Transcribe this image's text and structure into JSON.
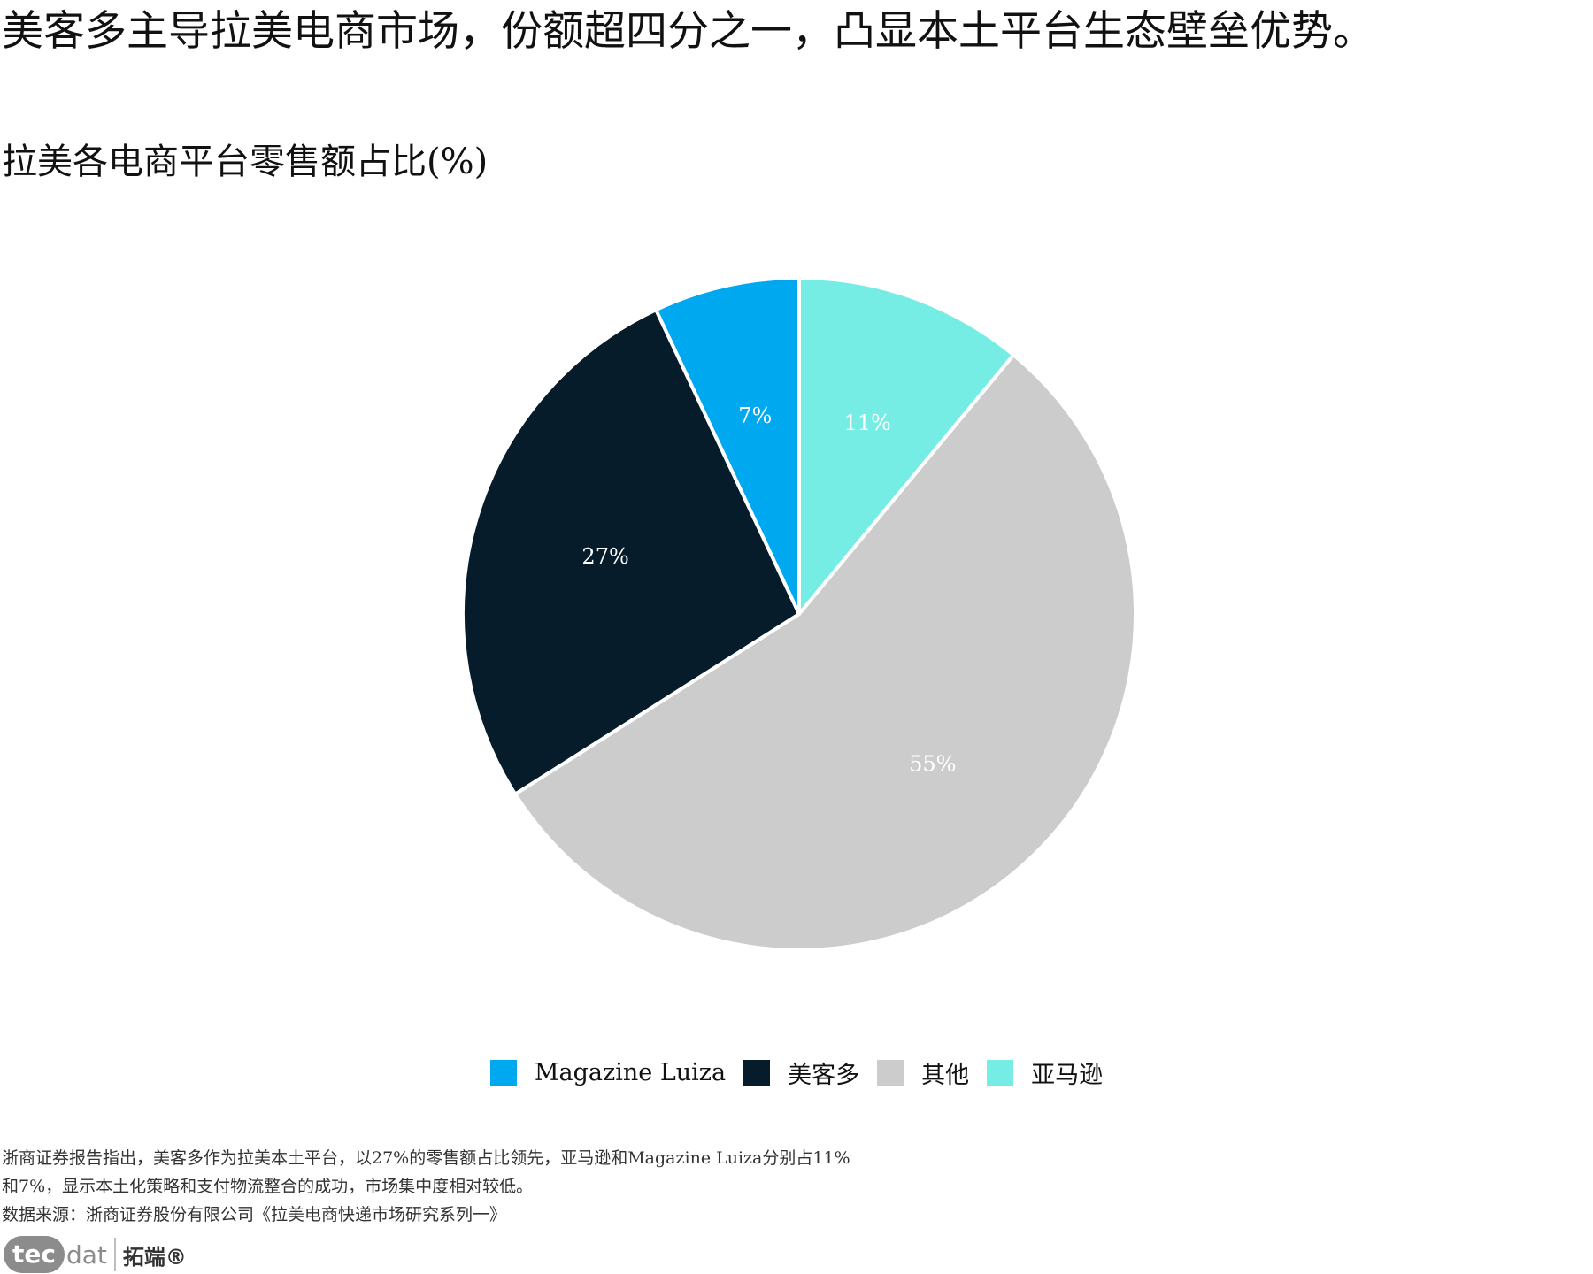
{
  "headline": "美客多主导拉美电商市场，份额超四分之一，凸显本土平台生态壁垒优势。",
  "chart_data": {
    "type": "pie",
    "title": "拉美各电商平台零售额占比(%)",
    "slices": [
      {
        "label": "Magazine Luiza",
        "value": 7,
        "display": "7%",
        "color": "#00a8f0"
      },
      {
        "label": "美客多",
        "value": 27,
        "display": "27%",
        "color": "#061c2b"
      },
      {
        "label": "其他",
        "value": 55,
        "display": "55%",
        "color": "#cccccc"
      },
      {
        "label": "亚马逊",
        "value": 11,
        "display": "11%",
        "color": "#76ede4"
      }
    ],
    "legend_position": "bottom"
  },
  "note": {
    "lines": [
      "浙商证券报告指出，美客多作为拉美本土平台，以27%的零售额占比领先，亚马逊和Magazine Luiza分别占11%",
      "和7%，显示本土化策略和支付物流整合的成功，市场集中度相对较低。",
      "数据来源：浙商证券股份有限公司《拉美电商快递市场研究系列一》"
    ]
  },
  "logo": {
    "tec": "tec",
    "dat": "dat",
    "cn": "拓端®"
  }
}
